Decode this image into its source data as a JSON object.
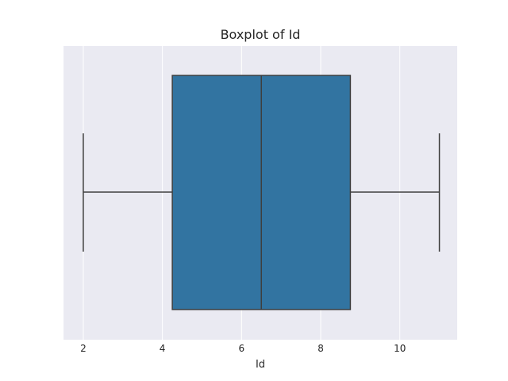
{
  "chart_data": {
    "type": "boxplot",
    "title": "Boxplot of Id",
    "xlabel": "Id",
    "ylabel": "",
    "orientation": "horizontal",
    "xlim": [
      1.5,
      11.45
    ],
    "xticks": [
      2,
      4,
      6,
      8,
      10
    ],
    "grid": true,
    "box": {
      "min": 2,
      "q1": 4.25,
      "median": 6.5,
      "q3": 8.75,
      "max": 11
    }
  },
  "colors": {
    "background": "#eaeaf2",
    "grid": "#ffffff",
    "box_fill": "#3274a1",
    "line": "#3f3f3f",
    "text": "#262626"
  }
}
